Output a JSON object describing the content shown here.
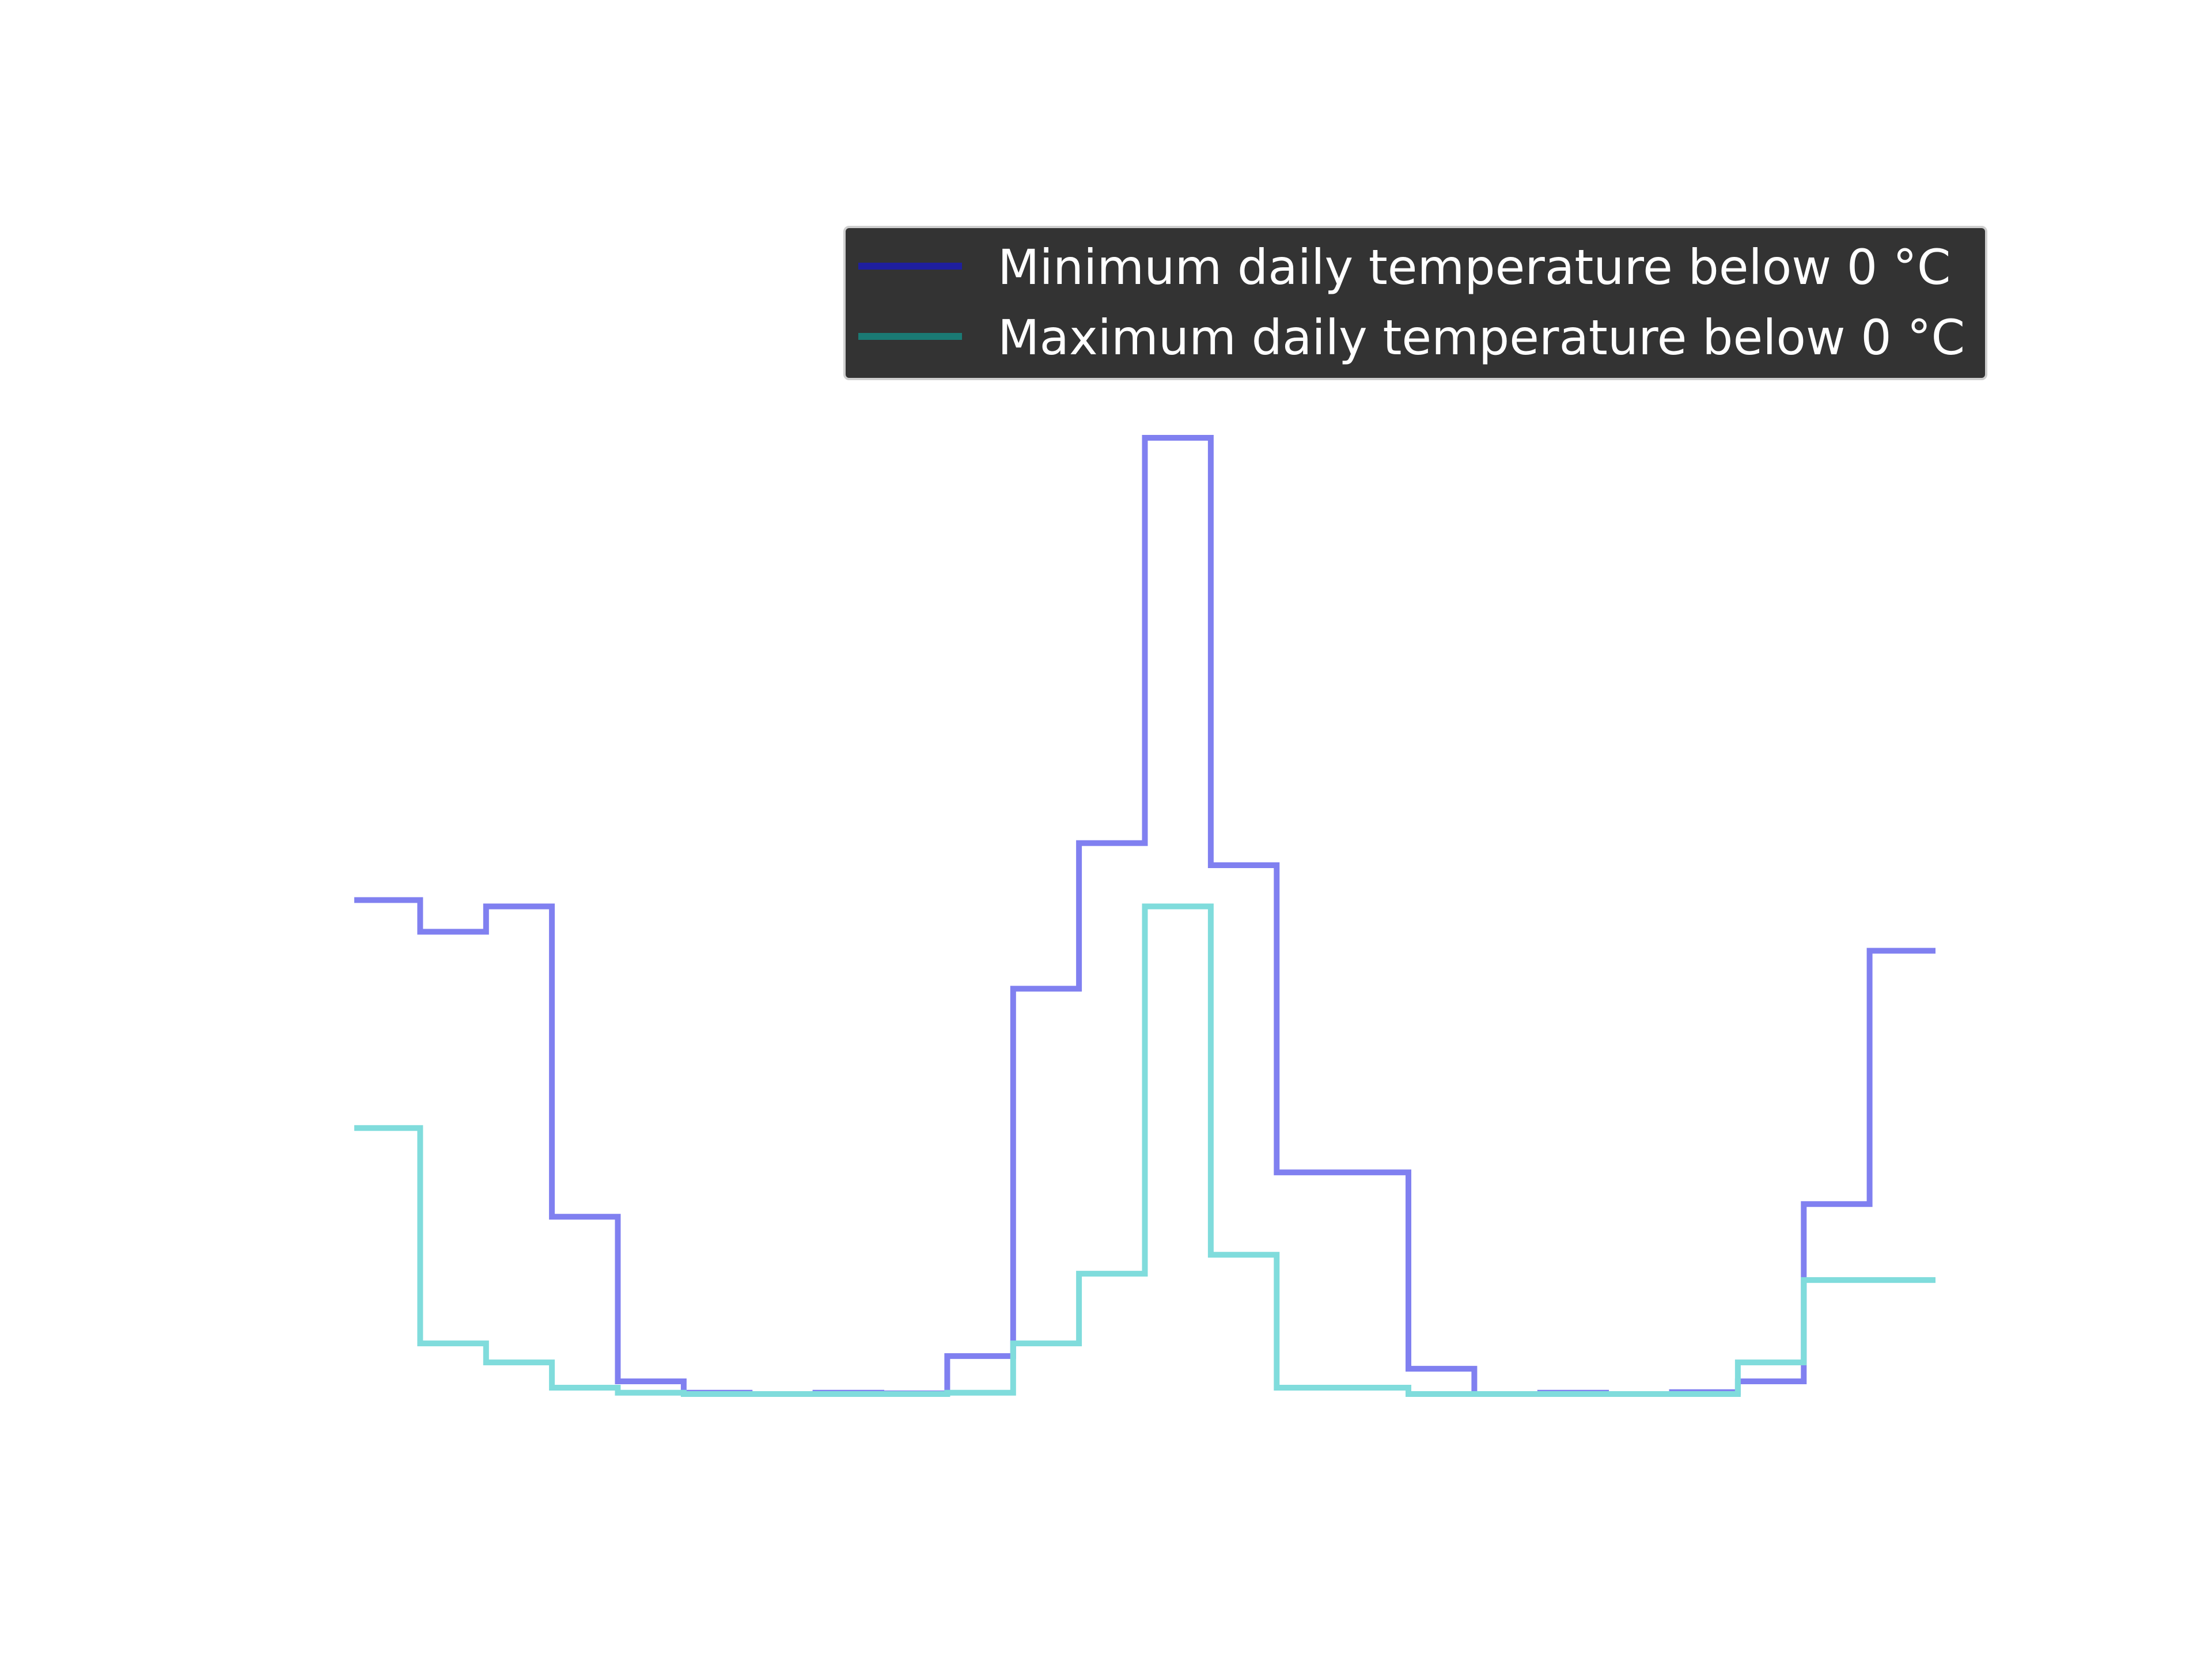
{
  "chart_data": {
    "type": "line",
    "drawstyle": "steps-post",
    "title": "",
    "xlabel": "",
    "ylabel": "",
    "axes_visible": false,
    "grid": false,
    "legend_placement": "top-right",
    "xlim": [
      0,
      24
    ],
    "ylim": [
      -0.5,
      15.6
    ],
    "x": [
      0,
      1,
      2,
      3,
      4,
      5,
      6,
      7,
      8,
      9,
      10,
      11,
      12,
      13,
      14,
      15,
      16,
      17,
      18,
      19,
      20,
      21,
      22,
      23,
      24
    ],
    "series": [
      {
        "name": "Minimum daily temperature below 0 °C",
        "legend_color": "#1f1f9e",
        "color": "#8080f0",
        "values": [
          7.8,
          7.3,
          7.7,
          2.8,
          0.2,
          0.02,
          0.0,
          0.02,
          0.01,
          0.6,
          6.4,
          8.7,
          15.1,
          8.35,
          3.5,
          3.5,
          0.4,
          0.0,
          0.02,
          0.0,
          0.03,
          0.2,
          3.0,
          7.0,
          7.0
        ]
      },
      {
        "name": "Maximum daily temperature below 0 °C",
        "legend_color": "#1a7a74",
        "color": "#80dcdc",
        "values": [
          4.2,
          0.8,
          0.5,
          0.1,
          0.02,
          0.0,
          0.0,
          0.0,
          0.0,
          0.02,
          0.8,
          1.9,
          7.7,
          2.2,
          0.1,
          0.1,
          0.0,
          0.0,
          0.0,
          0.0,
          0.0,
          0.5,
          1.8,
          1.8,
          1.8
        ]
      }
    ]
  }
}
